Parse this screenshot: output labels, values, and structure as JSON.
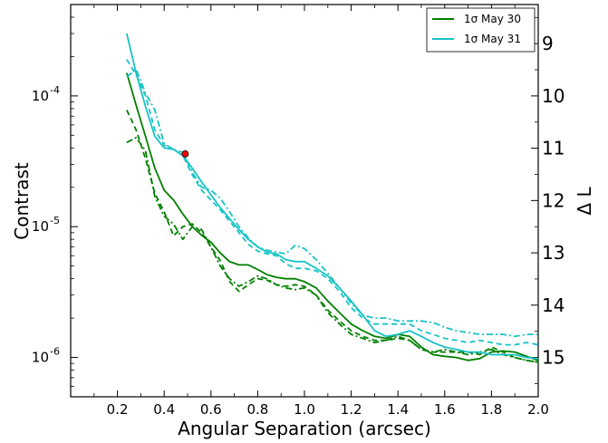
{
  "chart_data": {
    "type": "line",
    "xlabel": "Angular Separation (arcsec)",
    "ylabel": "Contrast",
    "y2label": "Δ L",
    "xlim": [
      0.0,
      2.0
    ],
    "ylim": [
      5e-07,
      0.0005
    ],
    "yscale": "log",
    "grid": false,
    "legend_position": "top-right",
    "x_ticks": [
      "0.2",
      "0.4",
      "0.6",
      "0.8",
      "1.0",
      "1.2",
      "1.4",
      "1.6",
      "1.8",
      "2.0"
    ],
    "y_ticks": [
      {
        "base": "10",
        "exp": "-4"
      },
      {
        "base": "10",
        "exp": "-5"
      },
      {
        "base": "10",
        "exp": "-6"
      }
    ],
    "y2_ticks": [
      "9",
      "10",
      "11",
      "12",
      "13",
      "14",
      "15"
    ],
    "legend": [
      {
        "label": "1σ May 30",
        "color": "#008000"
      },
      {
        "label": "1σ May 31",
        "color": "#17c3c6"
      }
    ],
    "series": [
      {
        "name": "1σ May 30",
        "color": "#008000",
        "dash": "solid",
        "x": [
          0.24,
          0.28,
          0.32,
          0.36,
          0.4,
          0.44,
          0.48,
          0.52,
          0.56,
          0.6,
          0.64,
          0.68,
          0.72,
          0.76,
          0.8,
          0.84,
          0.88,
          0.92,
          0.96,
          1.0,
          1.05,
          1.1,
          1.15,
          1.2,
          1.25,
          1.3,
          1.35,
          1.4,
          1.45,
          1.5,
          1.55,
          1.6,
          1.65,
          1.7,
          1.75,
          1.8,
          1.85,
          1.9,
          1.95,
          2.0
        ],
        "y": [
          0.00015,
          8.5e-05,
          4.9e-05,
          2.8e-05,
          1.9e-05,
          1.6e-05,
          1.25e-05,
          1e-05,
          8.6e-06,
          7.6e-06,
          6.3e-06,
          5.4e-06,
          5.1e-06,
          5.1e-06,
          4.7e-06,
          4.3e-06,
          4.1e-06,
          4e-06,
          4e-06,
          3.8e-06,
          3.4e-06,
          2.7e-06,
          2.2e-06,
          1.8e-06,
          1.6e-06,
          1.45e-06,
          1.4e-06,
          1.5e-06,
          1.45e-06,
          1.2e-06,
          1.05e-06,
          1.02e-06,
          1e-06,
          9.5e-07,
          9.8e-07,
          1.1e-06,
          1.12e-06,
          1.1e-06,
          1.02e-06,
          9.5e-07
        ]
      },
      {
        "name": "",
        "color": "#008000",
        "dash": "dashed",
        "x": [
          0.24,
          0.28,
          0.32,
          0.36,
          0.4,
          0.44,
          0.48,
          0.52,
          0.56,
          0.6,
          0.64,
          0.68,
          0.72,
          0.76,
          0.8,
          0.84,
          0.88,
          0.92,
          0.96,
          1.0,
          1.05,
          1.1,
          1.15,
          1.2,
          1.25,
          1.3,
          1.35,
          1.4,
          1.45,
          1.5,
          1.55,
          1.6,
          1.65,
          1.7,
          1.75,
          1.8,
          1.85,
          1.9,
          1.95,
          2.0
        ],
        "y": [
          7.8e-05,
          5.5e-05,
          3.3e-05,
          1.8e-05,
          1.3e-05,
          8.5e-06,
          1e-05,
          1.05e-05,
          9e-06,
          7e-06,
          5.5e-06,
          3.8e-06,
          3.2e-06,
          3.6e-06,
          4e-06,
          3.9e-06,
          3.6e-06,
          3.5e-06,
          3.6e-06,
          3.5e-06,
          3e-06,
          2.3e-06,
          1.9e-06,
          1.6e-06,
          1.45e-06,
          1.35e-06,
          1.35e-06,
          1.4e-06,
          1.35e-06,
          1.15e-06,
          1.1e-06,
          1.1e-06,
          1.1e-06,
          1.1e-06,
          1.05e-06,
          1.2e-06,
          1.1e-06,
          1e-06,
          9.5e-07,
          9.2e-07
        ]
      },
      {
        "name": "",
        "color": "#008000",
        "dash": "dashdot",
        "x": [
          0.24,
          0.28,
          0.32,
          0.36,
          0.4,
          0.44,
          0.48,
          0.52,
          0.56,
          0.6,
          0.64,
          0.68,
          0.72,
          0.76,
          0.8,
          0.84,
          0.88,
          0.92,
          0.96,
          1.0,
          1.05,
          1.1,
          1.15,
          1.2,
          1.25,
          1.3,
          1.35,
          1.4,
          1.45,
          1.5,
          1.55,
          1.6,
          1.65,
          1.7,
          1.75,
          1.8,
          1.85,
          1.9,
          1.95,
          2.0
        ],
        "y": [
          4.4e-05,
          4.8e-05,
          3.8e-05,
          1.7e-05,
          1.2e-05,
          1.05e-05,
          8e-06,
          1e-05,
          9.5e-06,
          7e-06,
          5e-06,
          4e-06,
          3.5e-06,
          3.8e-06,
          4.2e-06,
          4e-06,
          3.6e-06,
          3.4e-06,
          3.3e-06,
          3.4e-06,
          3e-06,
          2.2e-06,
          1.8e-06,
          1.5e-06,
          1.4e-06,
          1.3e-06,
          1.35e-06,
          1.45e-06,
          1.35e-06,
          1.15e-06,
          1.1e-06,
          1.15e-06,
          1.1e-06,
          1.05e-06,
          1.1e-06,
          1.15e-06,
          1.05e-06,
          1e-06,
          9.5e-07,
          9.2e-07
        ]
      },
      {
        "name": "1σ May 31",
        "color": "#17c3c6",
        "dash": "solid",
        "x": [
          0.24,
          0.28,
          0.32,
          0.36,
          0.4,
          0.44,
          0.48,
          0.52,
          0.56,
          0.6,
          0.64,
          0.68,
          0.72,
          0.76,
          0.8,
          0.84,
          0.88,
          0.92,
          0.96,
          1.0,
          1.05,
          1.1,
          1.15,
          1.2,
          1.25,
          1.3,
          1.35,
          1.4,
          1.45,
          1.5,
          1.55,
          1.6,
          1.65,
          1.7,
          1.75,
          1.8,
          1.85,
          1.9,
          1.95,
          2.0
        ],
        "y": [
          0.0003,
          0.00015,
          8.3e-05,
          4.9e-05,
          4e-05,
          3.9e-05,
          3.5e-05,
          2.8e-05,
          2.2e-05,
          1.75e-05,
          1.4e-05,
          1.15e-05,
          9.5e-06,
          8e-06,
          7e-06,
          6.4e-06,
          6.2e-06,
          5.6e-06,
          5.4e-06,
          5.4e-06,
          4.8e-06,
          4.2e-06,
          3.4e-06,
          2.7e-06,
          2.1e-06,
          1.6e-06,
          1.45e-06,
          1.5e-06,
          1.6e-06,
          1.45e-06,
          1.3e-06,
          1.2e-06,
          1.15e-06,
          1.1e-06,
          1.1e-06,
          1.05e-06,
          1.05e-06,
          1.05e-06,
          1e-06,
          9.8e-07
        ]
      },
      {
        "name": "",
        "color": "#17c3c6",
        "dash": "dashed",
        "x": [
          0.24,
          0.28,
          0.32,
          0.36,
          0.4,
          0.44,
          0.48,
          0.52,
          0.56,
          0.6,
          0.64,
          0.68,
          0.72,
          0.76,
          0.8,
          0.84,
          0.88,
          0.92,
          0.96,
          1.0,
          1.05,
          1.1,
          1.15,
          1.2,
          1.25,
          1.3,
          1.35,
          1.4,
          1.45,
          1.5,
          1.55,
          1.6,
          1.65,
          1.7,
          1.75,
          1.8,
          1.85,
          1.9,
          1.95,
          2.0
        ],
        "y": [
          0.00019,
          0.000145,
          0.0001,
          5.5e-05,
          4.2e-05,
          3.9e-05,
          3.5e-05,
          2.5e-05,
          1.9e-05,
          1.6e-05,
          1.35e-05,
          1.1e-05,
          9e-06,
          7.3e-06,
          6.5e-06,
          6.2e-06,
          6e-06,
          5.2e-06,
          4.8e-06,
          4.8e-06,
          4.6e-06,
          4e-06,
          3.2e-06,
          2.4e-06,
          2e-06,
          1.8e-06,
          1.8e-06,
          1.8e-06,
          1.8e-06,
          1.6e-06,
          1.5e-06,
          1.4e-06,
          1.35e-06,
          1.3e-06,
          1.35e-06,
          1.3e-06,
          1.25e-06,
          1.25e-06,
          1.3e-06,
          1.25e-06
        ]
      },
      {
        "name": "",
        "color": "#17c3c6",
        "dash": "dashdot",
        "x": [
          0.24,
          0.28,
          0.32,
          0.36,
          0.4,
          0.44,
          0.48,
          0.52,
          0.56,
          0.6,
          0.64,
          0.68,
          0.72,
          0.76,
          0.8,
          0.84,
          0.88,
          0.92,
          0.96,
          1.0,
          1.05,
          1.1,
          1.15,
          1.2,
          1.25,
          1.3,
          1.35,
          1.4,
          1.45,
          1.5,
          1.55,
          1.6,
          1.65,
          1.7,
          1.75,
          1.8,
          1.85,
          1.9,
          1.95,
          2.0
        ],
        "y": [
          0.00014,
          0.00016,
          0.000105,
          7.8e-05,
          4.3e-05,
          3.9e-05,
          3.7e-05,
          2.6e-05,
          2e-05,
          1.9e-05,
          1.65e-05,
          1.3e-05,
          1e-05,
          8.2e-06,
          7e-06,
          6.6e-06,
          6.4e-06,
          6.2e-06,
          7.2e-06,
          6.8e-06,
          5.6e-06,
          4.4e-06,
          3.4e-06,
          2.6e-06,
          2.1e-06,
          2e-06,
          2e-06,
          1.9e-06,
          1.9e-06,
          1.9e-06,
          1.85e-06,
          1.7e-06,
          1.6e-06,
          1.55e-06,
          1.5e-06,
          1.5e-06,
          1.5e-06,
          1.45e-06,
          1.5e-06,
          1.5e-06
        ]
      }
    ],
    "marker": {
      "x": 0.49,
      "y": 3.6e-05,
      "color": "#ff0000"
    }
  }
}
